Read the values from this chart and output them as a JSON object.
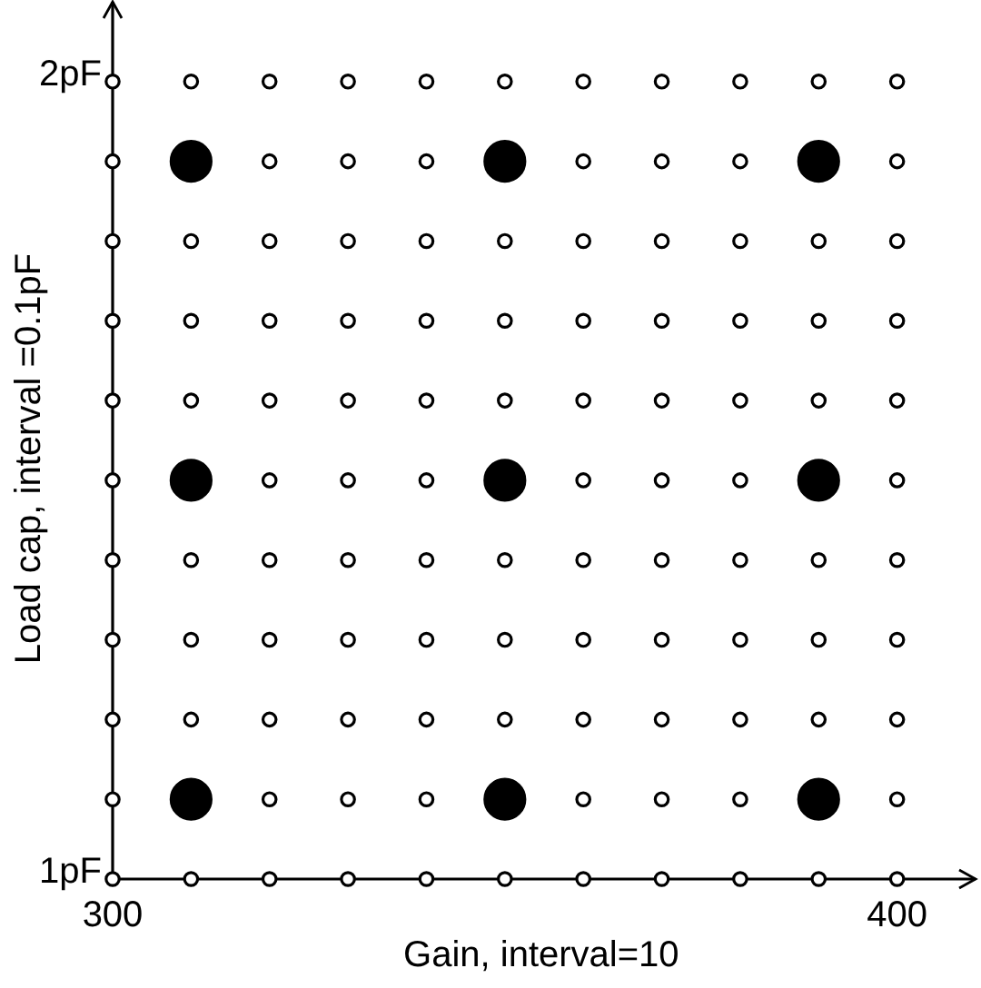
{
  "chart_data": {
    "type": "scatter",
    "xlabel": "Gain, interval=10",
    "ylabel": "Load cap, interval =0.1pF",
    "marker": "circle",
    "xlim": [
      300,
      410
    ],
    "ylim": [
      1,
      2.1
    ],
    "xticks": [
      300,
      400
    ],
    "yticks": [
      {
        "value": 1,
        "label": "1pF"
      },
      {
        "value": 2,
        "label": "2pF"
      }
    ],
    "series": [
      {
        "color": "#ffffff",
        "x": [
          300,
          310,
          320,
          330,
          340,
          350,
          360,
          370,
          380,
          390,
          400,
          300,
          320,
          330,
          340,
          360,
          370,
          380,
          400,
          300,
          310,
          320,
          330,
          340,
          350,
          360,
          370,
          380,
          390,
          400,
          300,
          310,
          320,
          330,
          340,
          350,
          360,
          370,
          380,
          390,
          400,
          300,
          310,
          320,
          330,
          340,
          350,
          360,
          370,
          380,
          390,
          400,
          300,
          320,
          330,
          340,
          360,
          370,
          380,
          400,
          300,
          310,
          320,
          330,
          340,
          350,
          360,
          370,
          380,
          390,
          400,
          300,
          310,
          320,
          330,
          340,
          350,
          360,
          370,
          380,
          390,
          400,
          300,
          310,
          320,
          330,
          340,
          350,
          360,
          370,
          380,
          390,
          400,
          300,
          320,
          330,
          340,
          360,
          370,
          380,
          400,
          300,
          310,
          320,
          330,
          340,
          350,
          360,
          370,
          380,
          390,
          400
        ],
        "values": [
          1,
          1,
          1,
          1,
          1,
          1,
          1,
          1,
          1,
          1,
          1,
          1.1,
          1.1,
          1.1,
          1.1,
          1.1,
          1.1,
          1.1,
          1.1,
          1.2,
          1.2,
          1.2,
          1.2,
          1.2,
          1.2,
          1.2,
          1.2,
          1.2,
          1.2,
          1.2,
          1.3,
          1.3,
          1.3,
          1.3,
          1.3,
          1.3,
          1.3,
          1.3,
          1.3,
          1.3,
          1.3,
          1.4,
          1.4,
          1.4,
          1.4,
          1.4,
          1.4,
          1.4,
          1.4,
          1.4,
          1.4,
          1.4,
          1.5,
          1.5,
          1.5,
          1.5,
          1.5,
          1.5,
          1.5,
          1.5,
          1.6,
          1.6,
          1.6,
          1.6,
          1.6,
          1.6,
          1.6,
          1.6,
          1.6,
          1.6,
          1.6,
          1.7,
          1.7,
          1.7,
          1.7,
          1.7,
          1.7,
          1.7,
          1.7,
          1.7,
          1.7,
          1.7,
          1.8,
          1.8,
          1.8,
          1.8,
          1.8,
          1.8,
          1.8,
          1.8,
          1.8,
          1.8,
          1.8,
          1.9,
          1.9,
          1.9,
          1.9,
          1.9,
          1.9,
          1.9,
          1.9,
          2,
          2,
          2,
          2,
          2,
          2,
          2,
          2,
          2,
          2,
          2
        ]
      },
      {
        "type": "bubble",
        "color": "#000000",
        "x": [
          310,
          350,
          390,
          310,
          350,
          390,
          310,
          350,
          390
        ],
        "values": [
          1.1,
          1.1,
          1.1,
          1.5,
          1.5,
          1.5,
          1.9,
          1.9,
          1.9
        ],
        "sizes": [
          1,
          1,
          1,
          1,
          1,
          1,
          1,
          1,
          1
        ]
      }
    ]
  }
}
